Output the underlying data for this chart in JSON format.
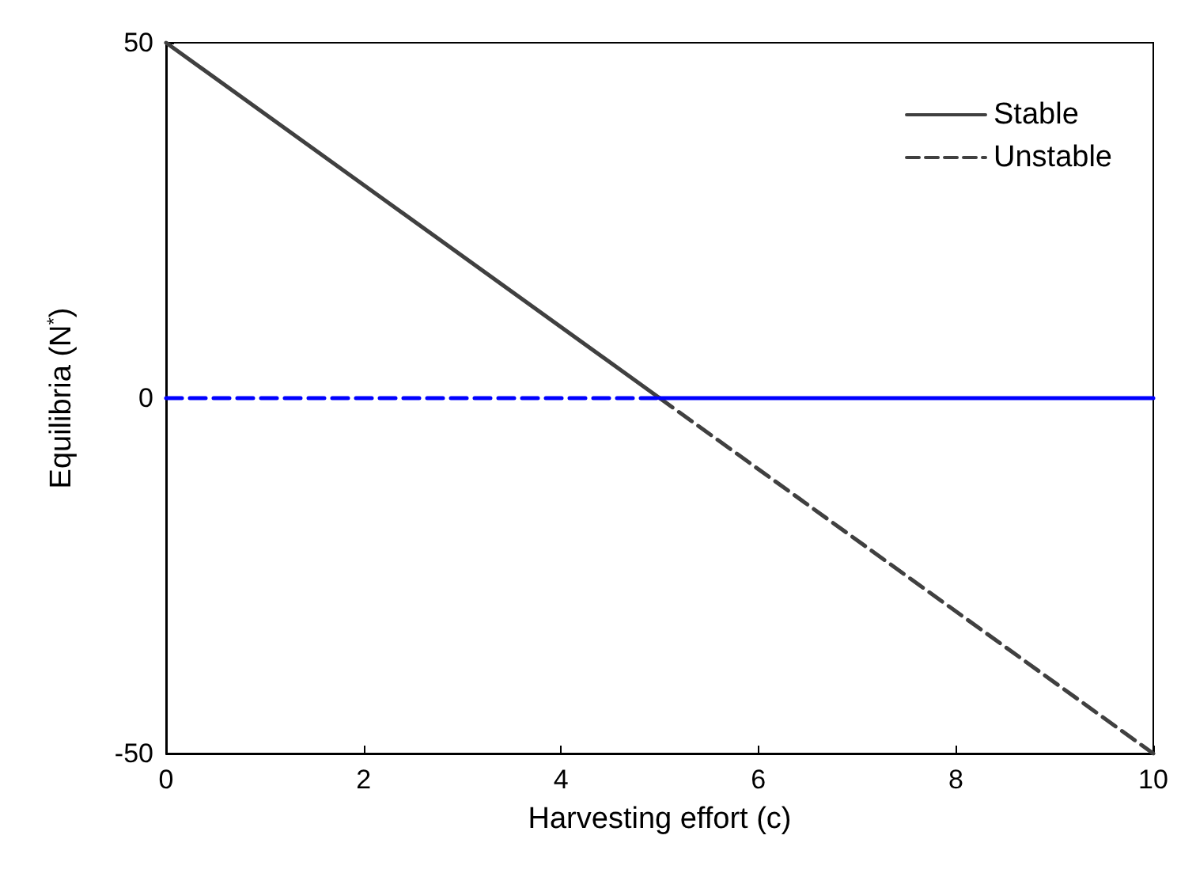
{
  "chart_data": {
    "type": "line",
    "xlabel": "Harvesting effort (c)",
    "ylabel": "Equilibria (N$^{*}$)",
    "xlim": [
      0,
      10
    ],
    "xticks": [
      0,
      2,
      4,
      6,
      8,
      10
    ],
    "ylim": [
      -50,
      50
    ],
    "yticks": [
      -50,
      0,
      50
    ],
    "grid": false,
    "legend": "top right",
    "marker": "none",
    "series": [
      {
        "name": "Stable",
        "color": "#404040",
        "line_style": "solid",
        "x": [
          0,
          5
        ],
        "values": [
          50,
          0
        ]
      },
      {
        "name": "Unstable",
        "color": "#404040",
        "line_style": "dashed",
        "x": [
          5,
          10
        ],
        "values": [
          0,
          -50
        ]
      },
      {
        "color": "#0000ff",
        "line_style": "dashed",
        "x": [
          0,
          5
        ],
        "values": [
          0,
          0
        ]
      },
      {
        "color": "#0000ff",
        "line_style": "solid",
        "x": [
          5,
          10
        ],
        "values": [
          0,
          0
        ]
      }
    ]
  }
}
